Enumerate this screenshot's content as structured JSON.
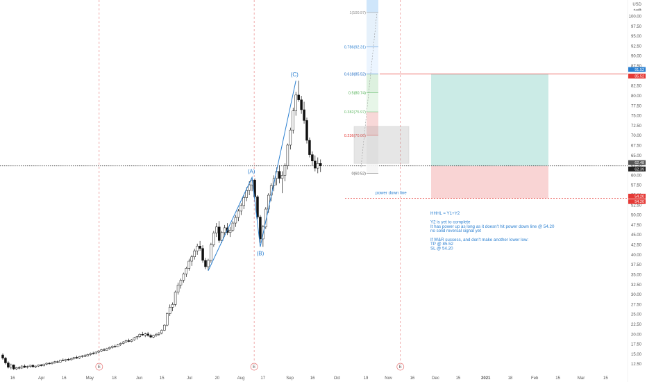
{
  "chart_data": {
    "type": "candlestick",
    "currency_label": "USD",
    "currency_sublabel": "هسه",
    "ylim": [
      10,
      105
    ],
    "y_ticks": [
      12.5,
      15,
      17.5,
      20,
      22.5,
      25,
      27.5,
      30,
      32.5,
      35,
      37.5,
      40,
      42.5,
      45,
      47.5,
      50,
      52.5,
      55,
      57.5,
      60,
      62.5,
      65,
      67.5,
      70,
      72.5,
      75,
      77.5,
      80,
      82.5,
      85,
      87.5,
      90,
      92.5,
      95,
      97.5,
      100
    ],
    "y_tick_labels": [
      "12.50",
      "15.00",
      "17.50",
      "20.00",
      "22.50",
      "25.00",
      "27.50",
      "30.00",
      "32.50",
      "35.00",
      "37.50",
      "40.00",
      "42.50",
      "45.00",
      "47.50",
      "50.00",
      "52.50",
      "55.00",
      "57.50",
      "60.00",
      "62.50",
      "65.00",
      "67.50",
      "70.00",
      "72.50",
      "75.00",
      "77.50",
      "80.00",
      "82.50",
      "85.00",
      "87.50",
      "90.00",
      "92.50",
      "95.00",
      "97.50",
      "100.00"
    ],
    "x_ticks": [
      {
        "label": "16",
        "pos": 0.02
      },
      {
        "label": "Apr",
        "pos": 0.066
      },
      {
        "label": "16",
        "pos": 0.102
      },
      {
        "label": "May",
        "pos": 0.143
      },
      {
        "label": "18",
        "pos": 0.182
      },
      {
        "label": "Jun",
        "pos": 0.222
      },
      {
        "label": "15",
        "pos": 0.258
      },
      {
        "label": "Jul",
        "pos": 0.302
      },
      {
        "label": "20",
        "pos": 0.346
      },
      {
        "label": "Aug",
        "pos": 0.384
      },
      {
        "label": "17",
        "pos": 0.419
      },
      {
        "label": "Sep",
        "pos": 0.462
      },
      {
        "label": "16",
        "pos": 0.498
      },
      {
        "label": "Oct",
        "pos": 0.537
      },
      {
        "label": "19",
        "pos": 0.583
      },
      {
        "label": "Nov",
        "pos": 0.619
      },
      {
        "label": "16",
        "pos": 0.657
      },
      {
        "label": "Dec",
        "pos": 0.694
      },
      {
        "label": "15",
        "pos": 0.73
      },
      {
        "label": "2021",
        "pos": 0.774
      },
      {
        "label": "18",
        "pos": 0.813
      },
      {
        "label": "Feb",
        "pos": 0.852
      },
      {
        "label": "15",
        "pos": 0.889
      },
      {
        "label": "Mar",
        "pos": 0.926
      },
      {
        "label": "15",
        "pos": 0.965
      }
    ],
    "earnings_markers": [
      "E",
      "E",
      "E"
    ],
    "last_price": "62.39",
    "last_price_value": 62.39,
    "prev_price": "62.48",
    "dotted_price_value": 62.39,
    "price_tags": [
      {
        "text": "91.52",
        "color": "#2a7fd0"
      },
      {
        "text": "85.52",
        "color": "#e53935"
      },
      {
        "text": "62.48",
        "color": "#555555"
      },
      {
        "text": "62.39",
        "color": "#222222"
      },
      {
        "text": "54.20",
        "color": "#e53935"
      },
      {
        "text": "54.20",
        "color": "#e53935"
      }
    ],
    "fib_levels": [
      {
        "label": "1(100.97)",
        "value": 100.97,
        "color": "#888888"
      },
      {
        "label": "0.786(92.31)",
        "value": 92.31,
        "color": "#2a7fd0"
      },
      {
        "label": "0.618(85.52)",
        "value": 85.52,
        "color": "#1565c0"
      },
      {
        "label": "0.5(80.74)",
        "value": 80.74,
        "color": "#4caf50"
      },
      {
        "label": "0.382(75.97)",
        "value": 75.97,
        "color": "#66bb6a"
      },
      {
        "label": "0.236(70.06)",
        "value": 70.06,
        "color": "#e53935"
      },
      {
        "label": "0(60.52)",
        "value": 60.52,
        "color": "#555555"
      }
    ],
    "waves": {
      "A": {
        "label": "(A)",
        "value": 59.5
      },
      "B": {
        "label": "(B)",
        "value": 42.0
      },
      "C": {
        "label": "(C)",
        "value": 83.8
      },
      "start_value": 36.0
    },
    "target_line_value": 85.52,
    "stop_line_value": 54.2,
    "entry_value": 62.39,
    "power_down_label": "power down line",
    "note_lines": [
      "HHHL = Y1+Y2",
      "",
      "Y2 is yet to complete",
      "It has power up as long as it doesn't hit power down line @ 54.20",
      "no solid reversal signal yet",
      "",
      "If W&R success, and don't make another lower low:",
      "TP @ 85.52",
      "SL @ 54.20"
    ],
    "candles": [
      [
        14.8,
        15.2,
        13.6,
        14.0
      ],
      [
        14.0,
        14.3,
        12.4,
        12.8
      ],
      [
        12.8,
        13.2,
        11.4,
        11.7
      ],
      [
        11.7,
        12.6,
        11.2,
        12.3
      ],
      [
        12.3,
        12.4,
        11.0,
        11.3
      ],
      [
        11.3,
        11.8,
        11.0,
        11.6
      ],
      [
        11.6,
        12.0,
        11.2,
        11.5
      ],
      [
        11.5,
        12.2,
        11.3,
        12.0
      ],
      [
        12.0,
        12.4,
        11.5,
        11.7
      ],
      [
        11.7,
        12.1,
        11.4,
        11.9
      ],
      [
        11.9,
        12.3,
        11.6,
        12.2
      ],
      [
        12.2,
        12.4,
        11.7,
        11.8
      ],
      [
        11.8,
        12.1,
        11.5,
        12.0
      ],
      [
        12.0,
        12.4,
        11.8,
        12.3
      ],
      [
        12.3,
        12.5,
        11.9,
        12.1
      ],
      [
        12.1,
        12.6,
        11.9,
        12.5
      ],
      [
        12.5,
        12.9,
        12.2,
        12.7
      ],
      [
        12.7,
        13.0,
        12.4,
        12.6
      ],
      [
        12.6,
        13.1,
        12.4,
        12.9
      ],
      [
        12.9,
        13.3,
        12.6,
        13.1
      ],
      [
        13.1,
        13.4,
        12.8,
        13.0
      ],
      [
        13.0,
        13.6,
        12.9,
        13.5
      ],
      [
        13.5,
        13.9,
        13.2,
        13.4
      ],
      [
        13.4,
        13.8,
        13.1,
        13.7
      ],
      [
        13.7,
        14.0,
        13.3,
        13.6
      ],
      [
        13.6,
        14.1,
        13.4,
        13.9
      ],
      [
        13.9,
        14.3,
        13.6,
        14.2
      ],
      [
        14.2,
        14.6,
        13.8,
        14.0
      ],
      [
        14.0,
        14.5,
        13.8,
        14.4
      ],
      [
        14.4,
        14.8,
        14.1,
        14.6
      ],
      [
        14.6,
        15.0,
        14.3,
        14.5
      ],
      [
        14.5,
        15.1,
        14.4,
        14.9
      ],
      [
        14.9,
        15.4,
        14.6,
        15.2
      ],
      [
        15.2,
        15.6,
        14.9,
        15.1
      ],
      [
        15.1,
        15.7,
        15.0,
        15.5
      ],
      [
        15.5,
        16.0,
        15.2,
        15.8
      ],
      [
        15.8,
        16.3,
        15.5,
        16.1
      ],
      [
        16.1,
        16.5,
        15.8,
        16.0
      ],
      [
        16.0,
        16.6,
        15.9,
        16.4
      ],
      [
        16.4,
        16.9,
        16.1,
        16.7
      ],
      [
        16.7,
        17.2,
        16.4,
        17.0
      ],
      [
        17.0,
        17.4,
        16.6,
        16.9
      ],
      [
        16.9,
        17.6,
        16.8,
        17.4
      ],
      [
        17.4,
        17.9,
        17.1,
        17.7
      ],
      [
        17.7,
        18.3,
        17.5,
        18.1
      ],
      [
        18.1,
        18.6,
        17.8,
        18.4
      ],
      [
        18.4,
        18.9,
        18.0,
        18.2
      ],
      [
        18.2,
        18.8,
        18.0,
        18.6
      ],
      [
        18.6,
        19.3,
        18.4,
        19.1
      ],
      [
        19.1,
        19.6,
        18.7,
        19.4
      ],
      [
        19.4,
        20.2,
        19.1,
        20.0
      ],
      [
        20.0,
        20.6,
        19.6,
        19.8
      ],
      [
        19.8,
        20.4,
        19.3,
        20.1
      ],
      [
        20.1,
        20.6,
        19.4,
        19.7
      ],
      [
        19.7,
        20.1,
        19.0,
        19.3
      ],
      [
        19.3,
        19.9,
        19.0,
        19.7
      ],
      [
        19.7,
        20.3,
        19.4,
        20.0
      ],
      [
        20.0,
        20.5,
        19.6,
        20.3
      ],
      [
        20.3,
        21.2,
        20.0,
        21.0
      ],
      [
        21.0,
        22.5,
        20.8,
        22.3
      ],
      [
        22.3,
        25.5,
        22.0,
        25.2
      ],
      [
        25.2,
        27.5,
        24.6,
        26.8
      ],
      [
        26.8,
        28.0,
        25.8,
        27.5
      ],
      [
        27.5,
        31.0,
        27.0,
        30.6
      ],
      [
        30.6,
        33.0,
        30.0,
        32.4
      ],
      [
        32.4,
        34.0,
        31.5,
        33.6
      ],
      [
        33.6,
        35.5,
        33.0,
        35.2
      ],
      [
        35.2,
        37.0,
        34.4,
        36.6
      ],
      [
        36.6,
        39.0,
        36.0,
        38.4
      ],
      [
        38.4,
        40.0,
        37.2,
        39.5
      ],
      [
        39.5,
        41.5,
        38.8,
        41.0
      ],
      [
        41.0,
        42.8,
        40.0,
        42.2
      ],
      [
        42.2,
        43.5,
        41.0,
        41.6
      ],
      [
        41.6,
        42.4,
        38.0,
        38.6
      ],
      [
        38.6,
        39.2,
        36.4,
        37.0
      ],
      [
        37.0,
        39.0,
        36.0,
        38.6
      ],
      [
        38.6,
        43.0,
        38.0,
        42.5
      ],
      [
        42.5,
        46.0,
        42.0,
        45.5
      ],
      [
        45.5,
        48.0,
        44.5,
        47.0
      ],
      [
        47.0,
        48.5,
        43.0,
        43.6
      ],
      [
        43.6,
        46.0,
        43.0,
        45.6
      ],
      [
        45.6,
        47.5,
        44.6,
        46.8
      ],
      [
        46.8,
        48.0,
        45.0,
        45.6
      ],
      [
        45.6,
        47.0,
        44.5,
        46.2
      ],
      [
        46.2,
        48.5,
        45.8,
        48.0
      ],
      [
        48.0,
        50.0,
        47.0,
        49.4
      ],
      [
        49.4,
        51.5,
        48.5,
        51.0
      ],
      [
        51.0,
        53.0,
        50.0,
        52.4
      ],
      [
        52.4,
        55.0,
        51.5,
        54.4
      ],
      [
        54.4,
        57.0,
        53.5,
        56.2
      ],
      [
        56.2,
        58.5,
        55.0,
        57.6
      ],
      [
        57.6,
        59.5,
        56.0,
        58.8
      ],
      [
        58.8,
        59.2,
        54.0,
        54.6
      ],
      [
        54.6,
        55.0,
        49.0,
        49.5
      ],
      [
        49.5,
        50.0,
        43.0,
        44.0
      ],
      [
        44.0,
        47.5,
        42.0,
        47.0
      ],
      [
        47.0,
        52.0,
        46.5,
        51.5
      ],
      [
        51.5,
        55.5,
        50.5,
        55.0
      ],
      [
        55.0,
        58.0,
        53.5,
        57.4
      ],
      [
        57.4,
        60.0,
        56.0,
        59.2
      ],
      [
        59.2,
        62.0,
        57.5,
        61.0
      ],
      [
        61.0,
        62.5,
        58.0,
        59.2
      ],
      [
        59.2,
        61.0,
        55.5,
        60.0
      ],
      [
        60.0,
        63.0,
        58.5,
        62.4
      ],
      [
        62.4,
        68.0,
        61.5,
        67.6
      ],
      [
        67.6,
        72.0,
        66.5,
        71.4
      ],
      [
        71.4,
        77.0,
        70.5,
        76.2
      ],
      [
        76.2,
        81.0,
        75.0,
        80.2
      ],
      [
        80.2,
        83.8,
        78.5,
        79.0
      ],
      [
        79.0,
        80.0,
        75.5,
        76.5
      ],
      [
        76.5,
        78.5,
        73.0,
        73.8
      ],
      [
        73.8,
        74.5,
        68.0,
        68.8
      ],
      [
        68.8,
        69.5,
        64.5,
        65.2
      ],
      [
        65.2,
        66.0,
        62.5,
        63.6
      ],
      [
        63.6,
        65.0,
        61.0,
        61.8
      ],
      [
        61.8,
        64.5,
        60.52,
        63.0
      ],
      [
        63.0,
        64.0,
        60.8,
        62.39
      ]
    ]
  }
}
